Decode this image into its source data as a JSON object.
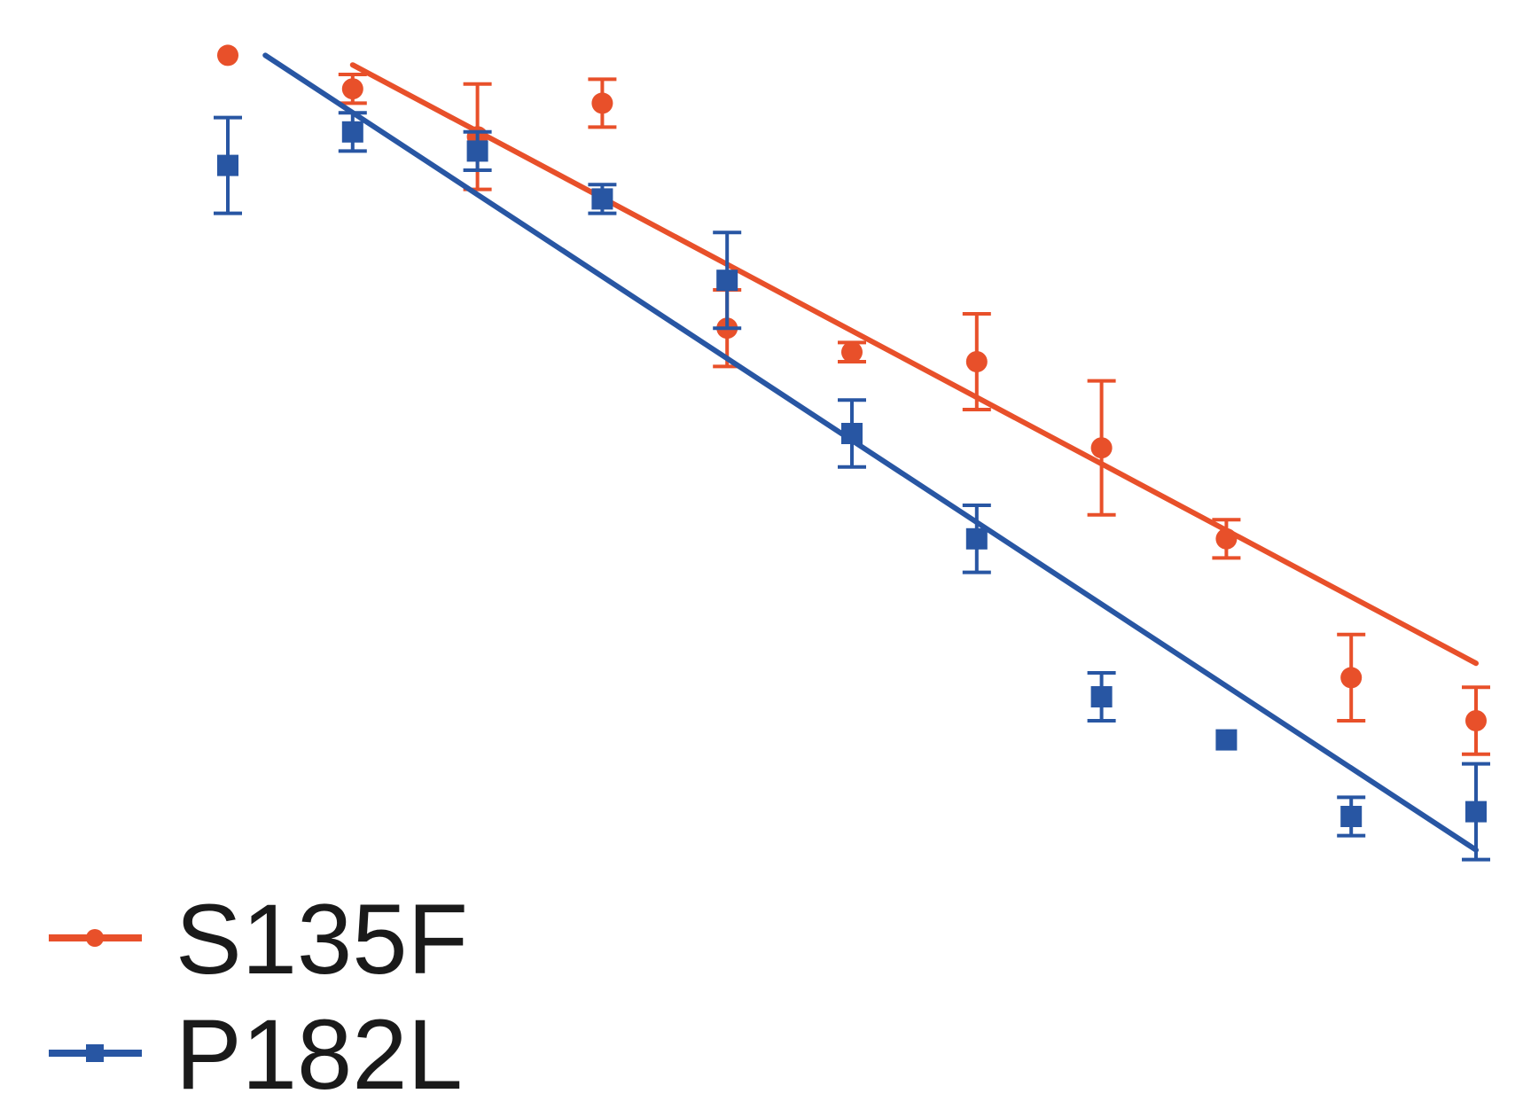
{
  "chart_data": {
    "type": "scatter",
    "title": "",
    "xlabel": "",
    "ylabel": "",
    "x": [
      1,
      2,
      3,
      4,
      5,
      6,
      7,
      8,
      9,
      10,
      11
    ],
    "xlim": [
      1,
      11
    ],
    "ylim": [
      0,
      1
    ],
    "grid": false,
    "legend_position": "bottom-left",
    "series": [
      {
        "name": "S135F",
        "color": "#e8502a",
        "marker": "circle",
        "points": [
          {
            "x": 1,
            "y": 0.97,
            "err": 0
          },
          {
            "x": 2,
            "y": 0.935,
            "err": 0.015
          },
          {
            "x": 3,
            "y": 0.885,
            "err": 0.055
          },
          {
            "x": 4,
            "y": 0.92,
            "err": 0.025
          },
          {
            "x": 5,
            "y": 0.685,
            "err": 0.04
          },
          {
            "x": 6,
            "y": 0.66,
            "err": 0.01
          },
          {
            "x": 7,
            "y": 0.65,
            "err": 0.05
          },
          {
            "x": 8,
            "y": 0.56,
            "err": 0.07
          },
          {
            "x": 9,
            "y": 0.465,
            "err": 0.02
          },
          {
            "x": 10,
            "y": 0.32,
            "err": 0.045
          },
          {
            "x": 11,
            "y": 0.275,
            "err": 0.035
          }
        ],
        "fit": {
          "x": [
            2,
            11
          ],
          "y": [
            0.96,
            0.335
          ]
        }
      },
      {
        "name": "P182L",
        "color": "#2856a3",
        "marker": "square",
        "points": [
          {
            "x": 1,
            "y": 0.855,
            "err": 0.05
          },
          {
            "x": 2,
            "y": 0.89,
            "err": 0.02
          },
          {
            "x": 3,
            "y": 0.87,
            "err": 0.02
          },
          {
            "x": 4,
            "y": 0.82,
            "err": 0.015
          },
          {
            "x": 5,
            "y": 0.735,
            "err": 0.05
          },
          {
            "x": 6,
            "y": 0.575,
            "err": 0.035
          },
          {
            "x": 7,
            "y": 0.465,
            "err": 0.035
          },
          {
            "x": 8,
            "y": 0.3,
            "err": 0.025
          },
          {
            "x": 9,
            "y": 0.255,
            "err": 0
          },
          {
            "x": 10,
            "y": 0.175,
            "err": 0.02
          },
          {
            "x": 11,
            "y": 0.18,
            "err": 0.05
          }
        ],
        "fit": {
          "x": [
            1.3,
            11
          ],
          "y": [
            0.97,
            0.14
          ]
        }
      }
    ]
  }
}
